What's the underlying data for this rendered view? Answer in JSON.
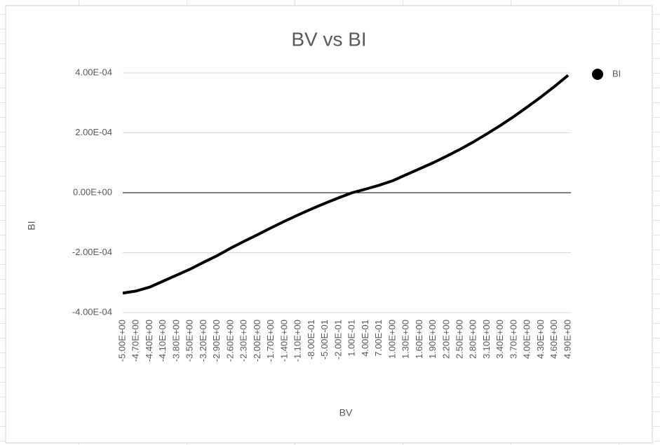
{
  "chart_data": {
    "type": "line",
    "title": "BV vs BI",
    "x_label": "BV",
    "y_label": "BI",
    "categories": [
      "-5.00E+00",
      "-4.70E+00",
      "-4.40E+00",
      "-4.10E+00",
      "-3.80E+00",
      "-3.50E+00",
      "-3.20E+00",
      "-2.90E+00",
      "-2.60E+00",
      "-2.30E+00",
      "-2.00E+00",
      "-1.70E+00",
      "-1.40E+00",
      "-1.10E+00",
      "-8.00E-01",
      "-5.00E-01",
      "-2.00E-01",
      "1.00E-01",
      "4.00E-01",
      "7.00E-01",
      "1.00E+00",
      "1.30E+00",
      "1.60E+00",
      "1.90E+00",
      "2.20E+00",
      "2.50E+00",
      "2.80E+00",
      "3.10E+00",
      "3.40E+00",
      "3.70E+00",
      "4.00E+00",
      "4.30E+00",
      "4.60E+00",
      "4.90E+00"
    ],
    "series": [
      {
        "name": "BI",
        "color": "#000000",
        "values": [
          -0.000335,
          -0.000328,
          -0.000315,
          -0.000295,
          -0.000275,
          -0.000255,
          -0.000232,
          -0.00021,
          -0.000185,
          -0.000162,
          -0.00014,
          -0.000117,
          -9.5e-05,
          -7.4e-05,
          -5.4e-05,
          -3.5e-05,
          -1.7e-05,
          0.0,
          1.2e-05,
          2.5e-05,
          4e-05,
          6e-05,
          8e-05,
          0.0001,
          0.000122,
          0.000145,
          0.00017,
          0.000197,
          0.000225,
          0.000255,
          0.000287,
          0.00032,
          0.000355,
          0.000392
        ]
      }
    ],
    "ylim": [
      -0.0004,
      0.0004
    ],
    "yticks": [
      {
        "value": -0.0004,
        "label": "-4.00E-04"
      },
      {
        "value": -0.0002,
        "label": "-2.00E-04"
      },
      {
        "value": 0,
        "label": "0.00E+00"
      },
      {
        "value": 0.0002,
        "label": "2.00E-04"
      },
      {
        "value": 0.0004,
        "label": "4.00E-04"
      }
    ],
    "grid": true,
    "legend": "right"
  }
}
